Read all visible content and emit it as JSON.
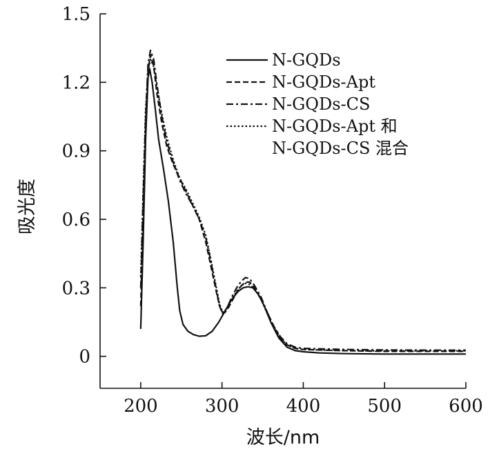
{
  "chart_data": {
    "type": "line",
    "title": "",
    "xlabel": "波长/nm",
    "ylabel": "吸光度",
    "xlim": [
      150,
      600
    ],
    "ylim": [
      -0.14,
      1.5
    ],
    "x_ticks": [
      200,
      300,
      400,
      500,
      600
    ],
    "y_ticks": [
      0,
      0.3,
      0.6,
      0.9,
      1.2,
      1.5
    ],
    "x_tick_labels": [
      "200",
      "300",
      "400",
      "500",
      "600"
    ],
    "y_tick_labels": [
      "0",
      "0.3",
      "0.6",
      "0.9",
      "1.2",
      "1.5"
    ],
    "grid": false,
    "legend_position": "top-right",
    "series": [
      {
        "name": "N-GQDs",
        "style": "solid",
        "points": [
          [
            200,
            0.12
          ],
          [
            203,
            0.5
          ],
          [
            206,
            0.95
          ],
          [
            209,
            1.22
          ],
          [
            211,
            1.26
          ],
          [
            214,
            1.2
          ],
          [
            218,
            1.08
          ],
          [
            222,
            0.95
          ],
          [
            228,
            0.82
          ],
          [
            234,
            0.68
          ],
          [
            240,
            0.5
          ],
          [
            245,
            0.3
          ],
          [
            248,
            0.2
          ],
          [
            252,
            0.14
          ],
          [
            258,
            0.11
          ],
          [
            265,
            0.095
          ],
          [
            272,
            0.088
          ],
          [
            280,
            0.09
          ],
          [
            288,
            0.11
          ],
          [
            296,
            0.15
          ],
          [
            304,
            0.2
          ],
          [
            312,
            0.25
          ],
          [
            320,
            0.285
          ],
          [
            326,
            0.3
          ],
          [
            332,
            0.305
          ],
          [
            338,
            0.3
          ],
          [
            345,
            0.27
          ],
          [
            352,
            0.22
          ],
          [
            360,
            0.15
          ],
          [
            370,
            0.08
          ],
          [
            380,
            0.04
          ],
          [
            390,
            0.025
          ],
          [
            400,
            0.02
          ],
          [
            420,
            0.015
          ],
          [
            450,
            0.012
          ],
          [
            500,
            0.01
          ],
          [
            550,
            0.01
          ],
          [
            600,
            0.01
          ]
        ]
      },
      {
        "name": "N-GQDs-Apt",
        "style": "dashed",
        "points": [
          [
            200,
            0.22
          ],
          [
            203,
            0.6
          ],
          [
            206,
            1.0
          ],
          [
            209,
            1.25
          ],
          [
            212,
            1.32
          ],
          [
            216,
            1.27
          ],
          [
            220,
            1.15
          ],
          [
            226,
            1.02
          ],
          [
            232,
            0.92
          ],
          [
            240,
            0.84
          ],
          [
            248,
            0.78
          ],
          [
            256,
            0.72
          ],
          [
            264,
            0.66
          ],
          [
            272,
            0.6
          ],
          [
            280,
            0.5
          ],
          [
            286,
            0.4
          ],
          [
            292,
            0.3
          ],
          [
            297,
            0.22
          ],
          [
            301,
            0.185
          ],
          [
            306,
            0.2
          ],
          [
            312,
            0.24
          ],
          [
            318,
            0.28
          ],
          [
            324,
            0.31
          ],
          [
            329,
            0.325
          ],
          [
            334,
            0.325
          ],
          [
            340,
            0.3
          ],
          [
            348,
            0.25
          ],
          [
            356,
            0.19
          ],
          [
            364,
            0.13
          ],
          [
            372,
            0.08
          ],
          [
            380,
            0.05
          ],
          [
            390,
            0.035
          ],
          [
            400,
            0.03
          ],
          [
            450,
            0.025
          ],
          [
            500,
            0.022
          ],
          [
            550,
            0.022
          ],
          [
            600,
            0.022
          ]
        ]
      },
      {
        "name": "N-GQDs-CS",
        "style": "dashdot",
        "points": [
          [
            200,
            0.3
          ],
          [
            203,
            0.7
          ],
          [
            206,
            1.05
          ],
          [
            209,
            1.28
          ],
          [
            212,
            1.34
          ],
          [
            216,
            1.3
          ],
          [
            220,
            1.19
          ],
          [
            226,
            1.05
          ],
          [
            232,
            0.94
          ],
          [
            240,
            0.85
          ],
          [
            248,
            0.77
          ],
          [
            256,
            0.71
          ],
          [
            264,
            0.66
          ],
          [
            272,
            0.6
          ],
          [
            280,
            0.52
          ],
          [
            286,
            0.42
          ],
          [
            292,
            0.31
          ],
          [
            297,
            0.22
          ],
          [
            301,
            0.19
          ],
          [
            306,
            0.21
          ],
          [
            312,
            0.26
          ],
          [
            318,
            0.3
          ],
          [
            324,
            0.33
          ],
          [
            329,
            0.345
          ],
          [
            334,
            0.34
          ],
          [
            340,
            0.31
          ],
          [
            348,
            0.26
          ],
          [
            356,
            0.19
          ],
          [
            364,
            0.13
          ],
          [
            372,
            0.085
          ],
          [
            380,
            0.055
          ],
          [
            390,
            0.04
          ],
          [
            400,
            0.035
          ],
          [
            450,
            0.03
          ],
          [
            500,
            0.028
          ],
          [
            550,
            0.027
          ],
          [
            600,
            0.027
          ]
        ]
      },
      {
        "name": "N-GQDs-Apt 和\nN-GQDs-CS 混合",
        "style": "dotted",
        "points": [
          [
            200,
            0.35
          ],
          [
            203,
            0.72
          ],
          [
            206,
            1.08
          ],
          [
            209,
            1.25
          ],
          [
            212,
            1.3
          ],
          [
            216,
            1.27
          ],
          [
            220,
            1.18
          ],
          [
            226,
            1.06
          ],
          [
            232,
            0.96
          ],
          [
            240,
            0.86
          ],
          [
            248,
            0.78
          ],
          [
            256,
            0.73
          ],
          [
            264,
            0.67
          ],
          [
            272,
            0.61
          ],
          [
            280,
            0.53
          ],
          [
            286,
            0.43
          ],
          [
            292,
            0.32
          ],
          [
            297,
            0.23
          ],
          [
            301,
            0.19
          ],
          [
            306,
            0.21
          ],
          [
            312,
            0.25
          ],
          [
            318,
            0.285
          ],
          [
            324,
            0.31
          ],
          [
            329,
            0.32
          ],
          [
            334,
            0.315
          ],
          [
            340,
            0.295
          ],
          [
            348,
            0.25
          ],
          [
            356,
            0.185
          ],
          [
            364,
            0.125
          ],
          [
            372,
            0.08
          ],
          [
            380,
            0.05
          ],
          [
            390,
            0.035
          ],
          [
            400,
            0.03
          ],
          [
            450,
            0.025
          ],
          [
            500,
            0.024
          ],
          [
            550,
            0.024
          ],
          [
            600,
            0.024
          ]
        ]
      }
    ]
  }
}
